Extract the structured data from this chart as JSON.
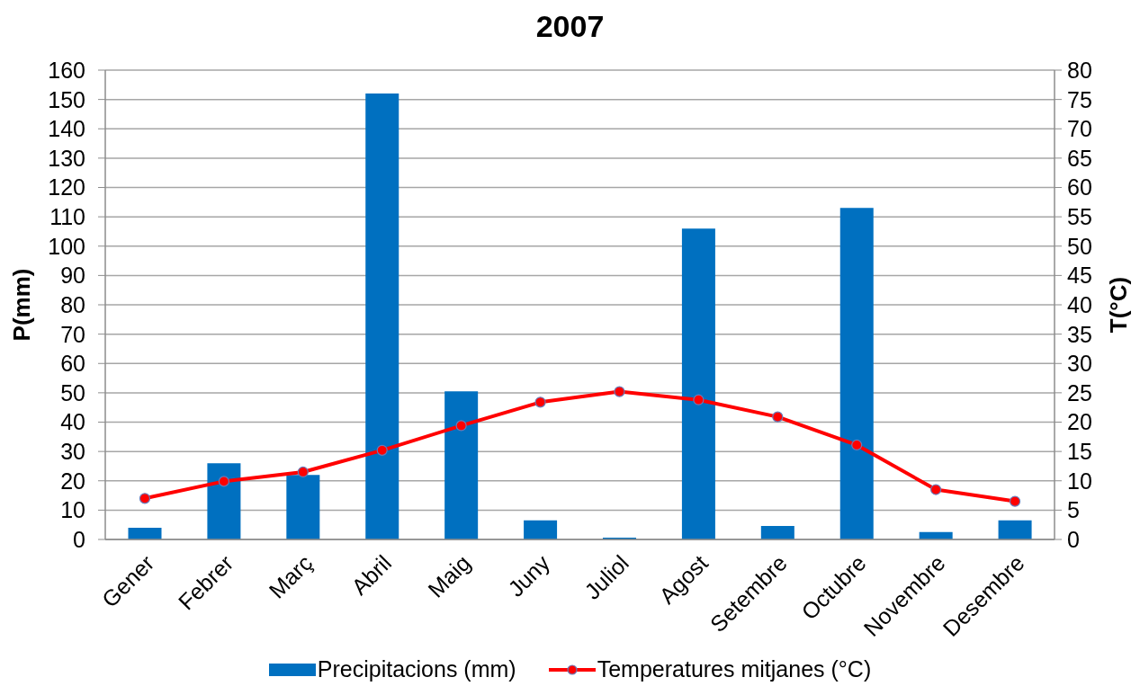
{
  "chart_data": {
    "type": "bar",
    "title": "2007",
    "categories": [
      "Gener",
      "Febrer",
      "Març",
      "Abril",
      "Maig",
      "Juny",
      "Juliol",
      "Agost",
      "Setembre",
      "Octubre",
      "Novembre",
      "Desembre"
    ],
    "series": [
      {
        "name": "Precipitacions (mm)",
        "color": "#0070c0",
        "values": [
          4,
          26,
          22,
          152,
          50.5,
          6.5,
          0.6,
          106,
          4.6,
          113,
          2.5,
          6.5
        ]
      },
      {
        "name": "Temperatures mitjanes (°C)",
        "type": "line",
        "axis": "y2",
        "color": "#ff0000",
        "values": [
          7,
          9.9,
          11.5,
          15.2,
          19.4,
          23.4,
          25.2,
          23.8,
          20.9,
          16.1,
          8.5,
          6.5
        ]
      }
    ],
    "ylabel": "P(mm)",
    "y2label": "T(°C)",
    "ylim": [
      0,
      160
    ],
    "yticks": [
      0,
      10,
      20,
      30,
      40,
      50,
      60,
      70,
      80,
      90,
      100,
      110,
      120,
      130,
      140,
      150,
      160
    ],
    "y2lim": [
      0,
      80
    ],
    "y2ticks": [
      0,
      5,
      10,
      15,
      20,
      25,
      30,
      35,
      40,
      45,
      50,
      55,
      60,
      65,
      70,
      75,
      80
    ],
    "grid": "y",
    "legend": "bottom",
    "marker": "circle",
    "line_style": "solid"
  }
}
